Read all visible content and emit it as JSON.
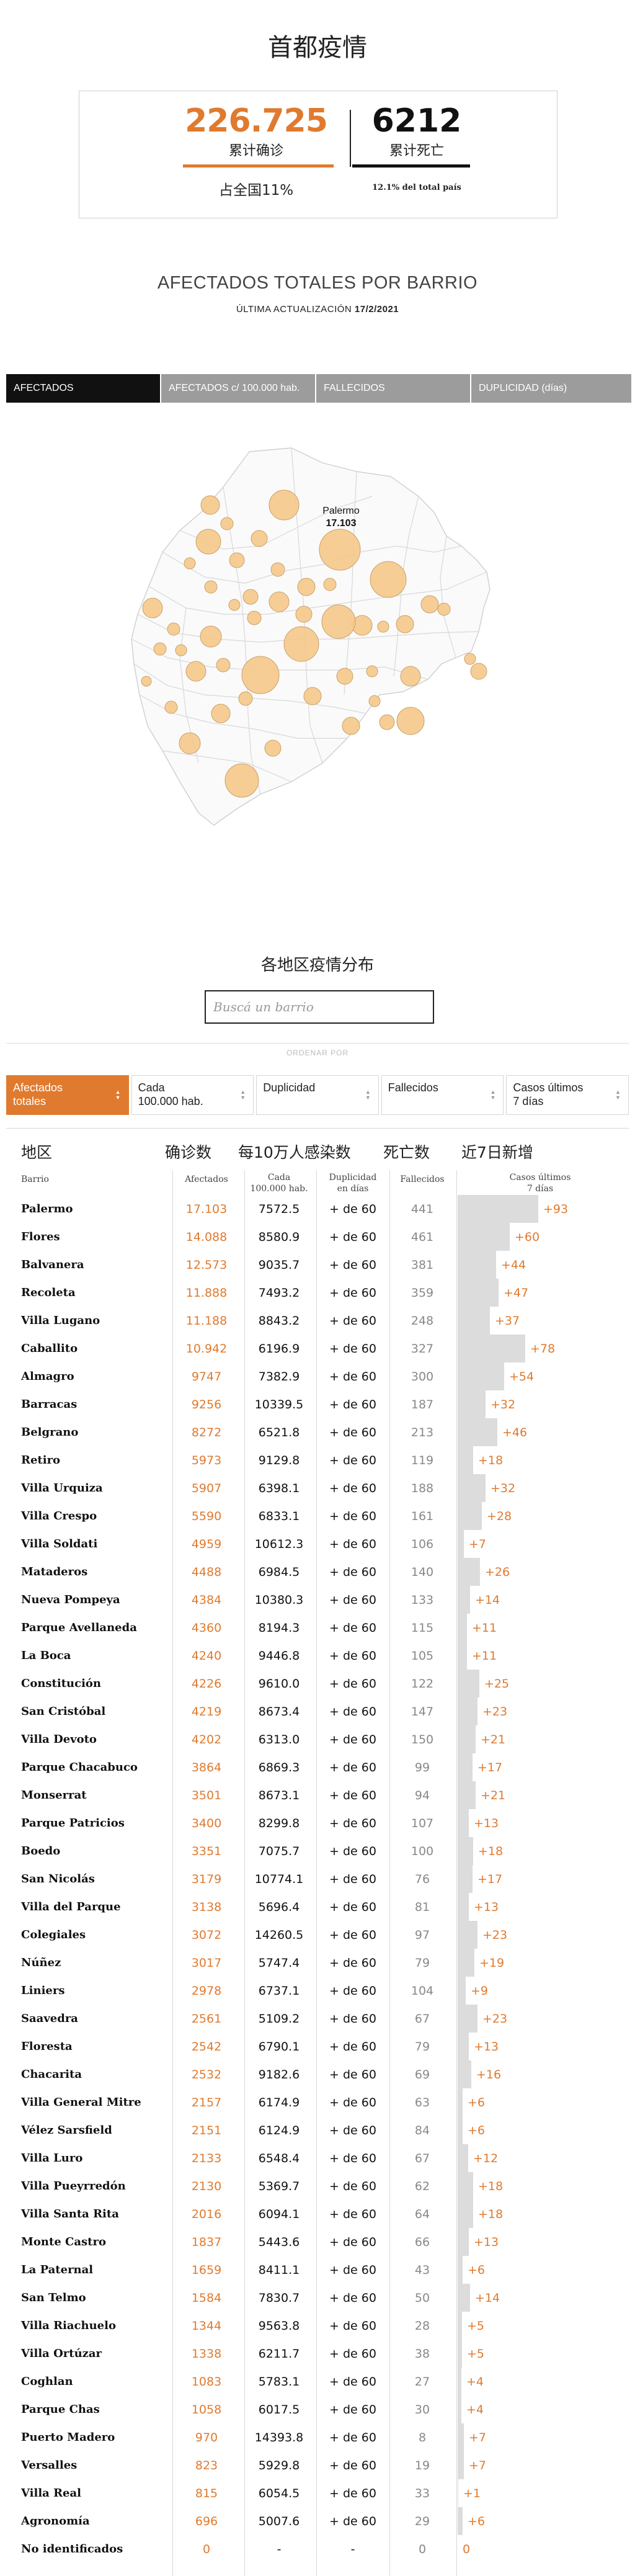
{
  "header": {
    "title": "首都疫情",
    "cases_total": "226.725",
    "cases_label": "累计确诊",
    "cases_share": "占全国11%",
    "deaths_total": "6212",
    "deaths_label": "累计死亡",
    "deaths_share": "12.1% del total país"
  },
  "map": {
    "title": "AFECTADOS TOTALES POR BARRIO",
    "updated_label": "ÚLTIMA ACTUALIZACIÓN",
    "updated_date": "17/2/2021",
    "tabs": [
      {
        "label": "AFECTADOS",
        "active": true
      },
      {
        "label": "AFECTADOS c/ 100.000 hab.",
        "active": false
      },
      {
        "label": "FALLECIDOS",
        "active": false
      },
      {
        "label": "DUPLICIDAD (días)",
        "active": false
      }
    ],
    "tooltip_name": "Palermo",
    "tooltip_value": "17.103",
    "bubble_color": "#f5c98a"
  },
  "search": {
    "title": "各地区疫情分布",
    "placeholder": "Buscá un barrio"
  },
  "sort": {
    "label": "ORDENAR POR",
    "buttons": [
      {
        "line1": "Afectados",
        "line2": "totales",
        "active": true
      },
      {
        "line1": "Cada",
        "line2": "100.000 hab.",
        "active": false
      },
      {
        "line1": "Duplicidad",
        "line2": "",
        "active": false
      },
      {
        "line1": "Fallecidos",
        "line2": "",
        "active": false
      },
      {
        "line1": "Casos últimos",
        "line2": "7 días",
        "active": false
      }
    ]
  },
  "table": {
    "cn_headers": [
      "地区",
      "确诊数",
      "每10万人感染数",
      "死亡数",
      "近7日新增"
    ],
    "headers": {
      "barrio": "Barrio",
      "cases": "Afectados",
      "rate_1": "Cada",
      "rate_2": "100.000 hab.",
      "dup_1": "Duplicidad",
      "dup_2": "en días",
      "deaths": "Fallecidos",
      "new_1": "Casos últimos",
      "new_2": "7 días"
    },
    "rows": [
      [
        "Palermo",
        "17.103",
        "7572.5",
        "+ de 60",
        "441",
        "+93",
        93
      ],
      [
        "Flores",
        "14.088",
        "8580.9",
        "+ de 60",
        "461",
        "+60",
        60
      ],
      [
        "Balvanera",
        "12.573",
        "9035.7",
        "+ de 60",
        "381",
        "+44",
        44
      ],
      [
        "Recoleta",
        "11.888",
        "7493.2",
        "+ de 60",
        "359",
        "+47",
        47
      ],
      [
        "Villa Lugano",
        "11.188",
        "8843.2",
        "+ de 60",
        "248",
        "+37",
        37
      ],
      [
        "Caballito",
        "10.942",
        "6196.9",
        "+ de 60",
        "327",
        "+78",
        78
      ],
      [
        "Almagro",
        "9747",
        "7382.9",
        "+ de 60",
        "300",
        "+54",
        54
      ],
      [
        "Barracas",
        "9256",
        "10339.5",
        "+ de 60",
        "187",
        "+32",
        32
      ],
      [
        "Belgrano",
        "8272",
        "6521.8",
        "+ de 60",
        "213",
        "+46",
        46
      ],
      [
        "Retiro",
        "5973",
        "9129.8",
        "+ de 60",
        "119",
        "+18",
        18
      ],
      [
        "Villa Urquiza",
        "5907",
        "6398.1",
        "+ de 60",
        "188",
        "+32",
        32
      ],
      [
        "Villa Crespo",
        "5590",
        "6833.1",
        "+ de 60",
        "161",
        "+28",
        28
      ],
      [
        "Villa Soldati",
        "4959",
        "10612.3",
        "+ de 60",
        "106",
        "+7",
        7
      ],
      [
        "Mataderos",
        "4488",
        "6984.5",
        "+ de 60",
        "140",
        "+26",
        26
      ],
      [
        "Nueva Pompeya",
        "4384",
        "10380.3",
        "+ de 60",
        "133",
        "+14",
        14
      ],
      [
        "Parque Avellaneda",
        "4360",
        "8194.3",
        "+ de 60",
        "115",
        "+11",
        11
      ],
      [
        "La Boca",
        "4240",
        "9446.8",
        "+ de 60",
        "105",
        "+11",
        11
      ],
      [
        "Constitución",
        "4226",
        "9610.0",
        "+ de 60",
        "122",
        "+25",
        25
      ],
      [
        "San Cristóbal",
        "4219",
        "8673.4",
        "+ de 60",
        "147",
        "+23",
        23
      ],
      [
        "Villa Devoto",
        "4202",
        "6313.0",
        "+ de 60",
        "150",
        "+21",
        21
      ],
      [
        "Parque Chacabuco",
        "3864",
        "6869.3",
        "+ de 60",
        "99",
        "+17",
        17
      ],
      [
        "Monserrat",
        "3501",
        "8673.1",
        "+ de 60",
        "94",
        "+21",
        21
      ],
      [
        "Parque Patricios",
        "3400",
        "8299.8",
        "+ de 60",
        "107",
        "+13",
        13
      ],
      [
        "Boedo",
        "3351",
        "7075.7",
        "+ de 60",
        "100",
        "+18",
        18
      ],
      [
        "San Nicolás",
        "3179",
        "10774.1",
        "+ de 60",
        "76",
        "+17",
        17
      ],
      [
        "Villa del Parque",
        "3138",
        "5696.4",
        "+ de 60",
        "81",
        "+13",
        13
      ],
      [
        "Colegiales",
        "3072",
        "14260.5",
        "+ de 60",
        "97",
        "+23",
        23
      ],
      [
        "Núñez",
        "3017",
        "5747.4",
        "+ de 60",
        "79",
        "+19",
        19
      ],
      [
        "Liniers",
        "2978",
        "6737.1",
        "+ de 60",
        "104",
        "+9",
        9
      ],
      [
        "Saavedra",
        "2561",
        "5109.2",
        "+ de 60",
        "67",
        "+23",
        23
      ],
      [
        "Floresta",
        "2542",
        "6790.1",
        "+ de 60",
        "79",
        "+13",
        13
      ],
      [
        "Chacarita",
        "2532",
        "9182.6",
        "+ de 60",
        "69",
        "+16",
        16
      ],
      [
        "Villa General Mitre",
        "2157",
        "6174.9",
        "+ de 60",
        "63",
        "+6",
        6
      ],
      [
        "Vélez Sarsfield",
        "2151",
        "6124.9",
        "+ de 60",
        "84",
        "+6",
        6
      ],
      [
        "Villa Luro",
        "2133",
        "6548.4",
        "+ de 60",
        "67",
        "+12",
        12
      ],
      [
        "Villa Pueyrredón",
        "2130",
        "5369.7",
        "+ de 60",
        "62",
        "+18",
        18
      ],
      [
        "Villa Santa Rita",
        "2016",
        "6094.1",
        "+ de 60",
        "64",
        "+18",
        18
      ],
      [
        "Monte Castro",
        "1837",
        "5443.6",
        "+ de 60",
        "66",
        "+13",
        13
      ],
      [
        "La Paternal",
        "1659",
        "8411.1",
        "+ de 60",
        "43",
        "+6",
        6
      ],
      [
        "San Telmo",
        "1584",
        "7830.7",
        "+ de 60",
        "50",
        "+14",
        14
      ],
      [
        "Villa Riachuelo",
        "1344",
        "9563.8",
        "+ de 60",
        "28",
        "+5",
        5
      ],
      [
        "Villa Ortúzar",
        "1338",
        "6211.7",
        "+ de 60",
        "38",
        "+5",
        5
      ],
      [
        "Coghlan",
        "1083",
        "5783.1",
        "+ de 60",
        "27",
        "+4",
        4
      ],
      [
        "Parque Chas",
        "1058",
        "6017.5",
        "+ de 60",
        "30",
        "+4",
        4
      ],
      [
        "Puerto Madero",
        "970",
        "14393.8",
        "+ de 60",
        "8",
        "+7",
        7
      ],
      [
        "Versalles",
        "823",
        "5929.8",
        "+ de 60",
        "19",
        "+7",
        7
      ],
      [
        "Villa Real",
        "815",
        "6054.5",
        "+ de 60",
        "33",
        "+1",
        1
      ],
      [
        "Agronomía",
        "696",
        "5007.6",
        "+ de 60",
        "29",
        "+6",
        6
      ],
      [
        "No identificados",
        "0",
        "-",
        "-",
        "0",
        "0",
        0
      ]
    ]
  }
}
